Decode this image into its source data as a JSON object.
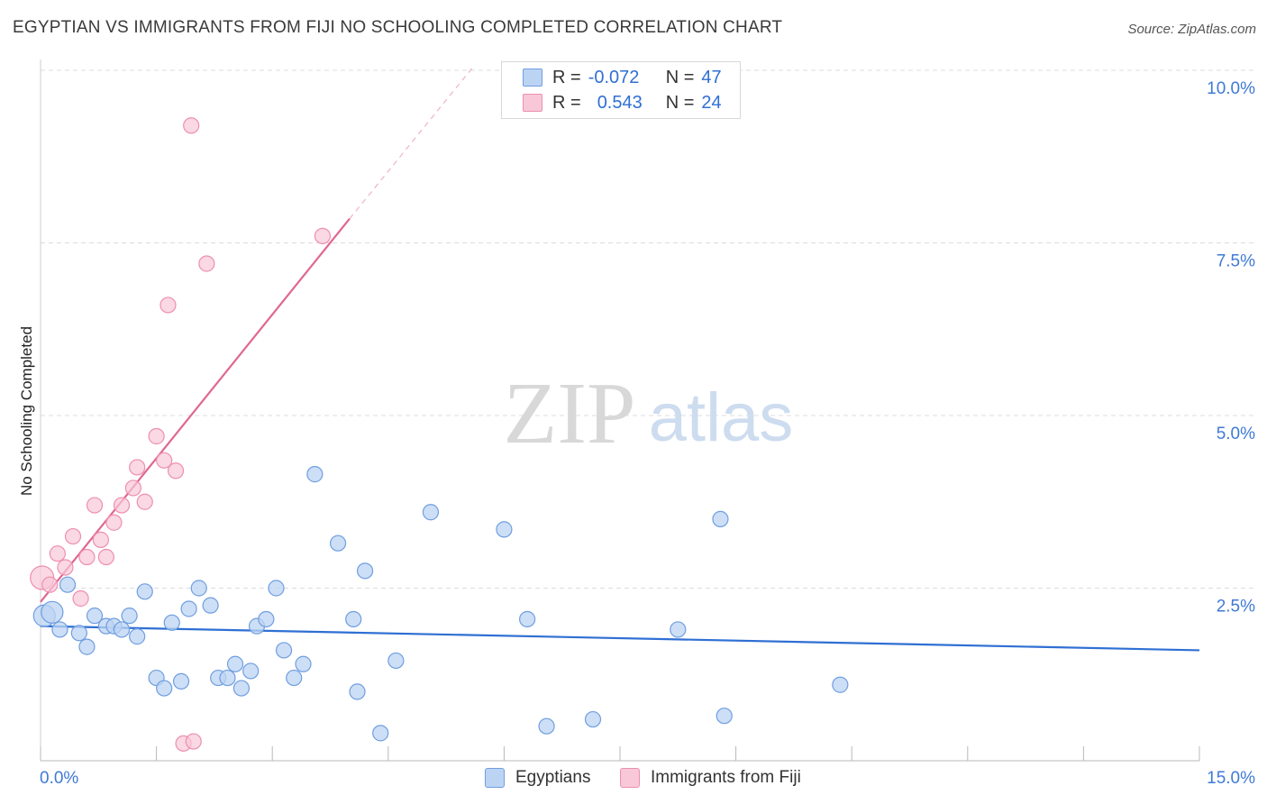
{
  "title": "EGYPTIAN VS IMMIGRANTS FROM FIJI NO SCHOOLING COMPLETED CORRELATION CHART",
  "source": "Source: ZipAtlas.com",
  "watermark": {
    "zip": "ZIP",
    "atlas": "atlas"
  },
  "legend_top": {
    "rows": [
      {
        "r_label": "R =",
        "r_value": "-0.072",
        "n_label": "N =",
        "n_value": "47"
      },
      {
        "r_label": "R =",
        "r_value": "0.543",
        "n_label": "N =",
        "n_value": "24"
      }
    ]
  },
  "legend_bottom": {
    "items": [
      "Egyptians",
      "Immigrants from Fiji"
    ]
  },
  "chart_data": {
    "type": "scatter",
    "title": "EGYPTIAN VS IMMIGRANTS FROM FIJI NO SCHOOLING COMPLETED CORRELATION CHART",
    "xlabel": "",
    "ylabel": "No Schooling Completed",
    "xlim": [
      0,
      15
    ],
    "ylim": [
      0,
      10
    ],
    "x_tick_labels": [
      "0.0%",
      "15.0%"
    ],
    "y_tick_labels": [
      "2.5%",
      "5.0%",
      "7.5%",
      "10.0%"
    ],
    "y_ticks": [
      2.5,
      5.0,
      7.5,
      10.0
    ],
    "grid": true,
    "legend_position": "top-center",
    "colors": {
      "egyptians": "#6f9ee0",
      "egyptians_fill": "#bcd4f3",
      "fiji": "#ee8fae",
      "fiji_fill": "#f8c8d8",
      "egyptians_line": "#2f6fd3",
      "fiji_line": "#e0678f"
    },
    "series": [
      {
        "name": "Egyptians",
        "r": -0.072,
        "n": 47,
        "trend": {
          "x": [
            0,
            15
          ],
          "y": [
            1.95,
            1.6
          ]
        },
        "points": [
          [
            0.05,
            2.1
          ],
          [
            0.15,
            2.15
          ],
          [
            0.25,
            1.9
          ],
          [
            0.35,
            2.55
          ],
          [
            0.5,
            1.85
          ],
          [
            0.6,
            1.65
          ],
          [
            0.7,
            2.1
          ],
          [
            0.85,
            1.95
          ],
          [
            0.95,
            1.95
          ],
          [
            1.05,
            1.9
          ],
          [
            1.15,
            2.1
          ],
          [
            1.25,
            1.8
          ],
          [
            1.35,
            2.45
          ],
          [
            1.5,
            1.2
          ],
          [
            1.6,
            1.05
          ],
          [
            1.7,
            2.0
          ],
          [
            1.82,
            1.15
          ],
          [
            1.92,
            2.2
          ],
          [
            2.05,
            2.5
          ],
          [
            2.2,
            2.25
          ],
          [
            2.3,
            1.2
          ],
          [
            2.42,
            1.2
          ],
          [
            2.52,
            1.4
          ],
          [
            2.6,
            1.05
          ],
          [
            2.72,
            1.3
          ],
          [
            2.8,
            1.95
          ],
          [
            2.92,
            2.05
          ],
          [
            3.05,
            2.5
          ],
          [
            3.15,
            1.6
          ],
          [
            3.28,
            1.2
          ],
          [
            3.4,
            1.4
          ],
          [
            3.55,
            4.15
          ],
          [
            3.85,
            3.15
          ],
          [
            4.05,
            2.05
          ],
          [
            4.1,
            1.0
          ],
          [
            4.2,
            2.75
          ],
          [
            4.4,
            0.4
          ],
          [
            4.6,
            1.45
          ],
          [
            5.05,
            3.6
          ],
          [
            6.0,
            3.35
          ],
          [
            6.3,
            2.05
          ],
          [
            6.55,
            0.5
          ],
          [
            7.15,
            0.6
          ],
          [
            8.25,
            1.9
          ],
          [
            8.8,
            3.5
          ],
          [
            8.85,
            0.65
          ],
          [
            10.35,
            1.1
          ]
        ]
      },
      {
        "name": "Immigrants from Fiji",
        "r": 0.543,
        "n": 24,
        "trend": {
          "x": [
            0,
            4.0
          ],
          "y": [
            2.3,
            7.85
          ]
        },
        "trend_dashed": {
          "x": [
            4.0,
            5.6
          ],
          "y": [
            7.85,
            10.05
          ]
        },
        "points": [
          [
            0.02,
            2.65
          ],
          [
            0.12,
            2.55
          ],
          [
            0.22,
            3.0
          ],
          [
            0.32,
            2.8
          ],
          [
            0.42,
            3.25
          ],
          [
            0.52,
            2.35
          ],
          [
            0.6,
            2.95
          ],
          [
            0.7,
            3.7
          ],
          [
            0.78,
            3.2
          ],
          [
            0.85,
            2.95
          ],
          [
            0.95,
            3.45
          ],
          [
            1.05,
            3.7
          ],
          [
            1.2,
            3.95
          ],
          [
            1.25,
            4.25
          ],
          [
            1.35,
            3.75
          ],
          [
            1.5,
            4.7
          ],
          [
            1.6,
            4.35
          ],
          [
            1.65,
            6.6
          ],
          [
            1.75,
            4.2
          ],
          [
            1.95,
            9.2
          ],
          [
            1.85,
            0.25
          ],
          [
            1.98,
            0.28
          ],
          [
            2.15,
            7.2
          ],
          [
            3.65,
            7.6
          ]
        ]
      }
    ]
  }
}
